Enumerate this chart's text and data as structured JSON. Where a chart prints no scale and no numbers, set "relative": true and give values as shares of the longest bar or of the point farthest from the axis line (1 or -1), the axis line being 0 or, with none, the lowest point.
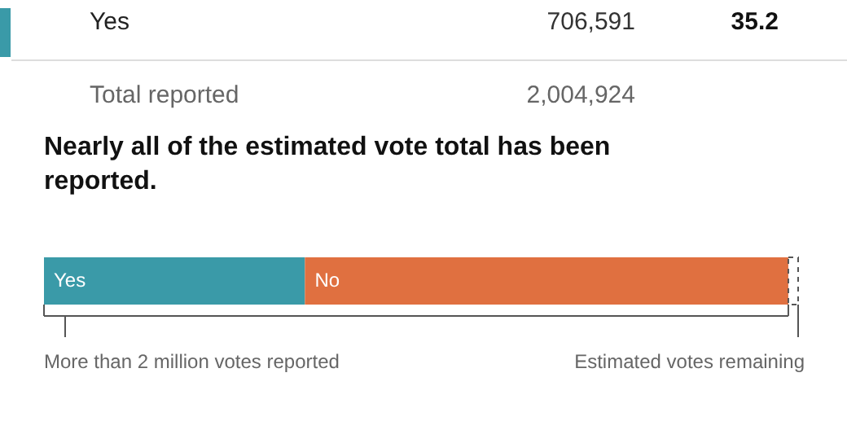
{
  "chart_data": {
    "type": "bar",
    "orientation": "horizontal",
    "stacked": true,
    "relative": true,
    "title": "Nearly all of the estimated vote total has been reported.",
    "categories": [
      null
    ],
    "series": [
      {
        "name": "Yes",
        "color": "#3a9aa8",
        "values": [
          0.346
        ]
      },
      {
        "name": "No",
        "color": "#e07040",
        "values": [
          0.641
        ]
      },
      {
        "color": "#ffffff",
        "line_style": "dashed",
        "values": [
          0.013
        ]
      }
    ],
    "annotations": [
      "Yes",
      "706,591",
      "35.2",
      "Total reported",
      "2,004,924",
      "More than 2 million votes reported",
      "Estimated votes remaining"
    ]
  }
}
